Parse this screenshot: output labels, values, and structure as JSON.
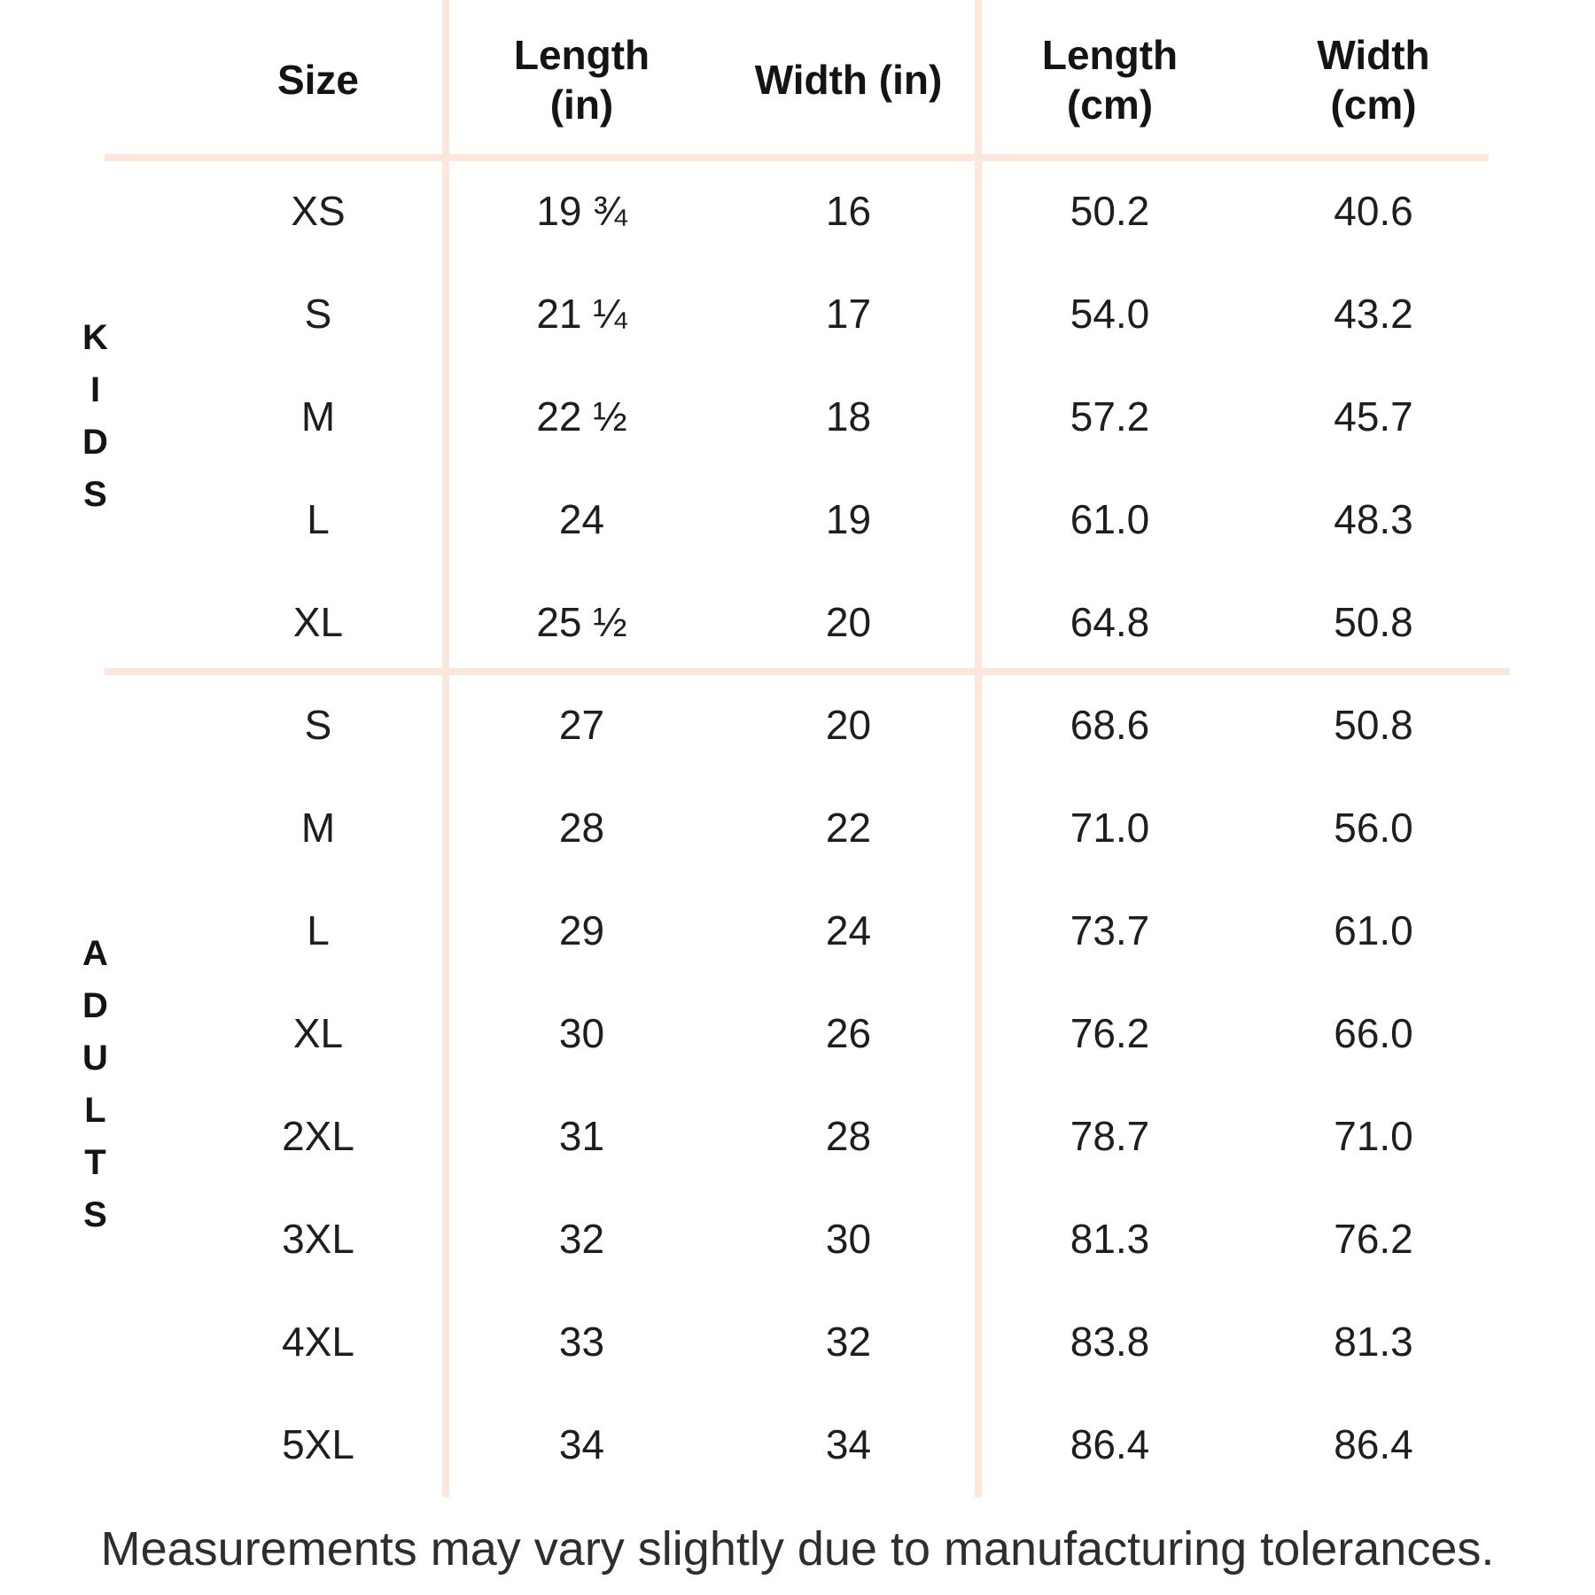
{
  "colors": {
    "background": "#ffffff",
    "divider_line": "#fbe7dc",
    "text": "#1e1e1e",
    "footer_text": "#2e2e2e"
  },
  "header_lines": [
    [
      "Size"
    ],
    [
      "Length",
      "(in)"
    ],
    [
      "Width (in)"
    ],
    [
      "Length",
      "(cm)"
    ],
    [
      "Width",
      "(cm)"
    ]
  ],
  "chart_data": {
    "type": "table",
    "columns": [
      "Size",
      "Length (in)",
      "Width (in)",
      "Length (cm)",
      "Width (cm)"
    ],
    "sections": [
      {
        "group": "KIDS",
        "letters": [
          "K",
          "I",
          "D",
          "S"
        ],
        "rows": [
          [
            "XS",
            "19 ¾",
            "16",
            "50.2",
            "40.6"
          ],
          [
            "S",
            "21 ¼",
            "17",
            "54.0",
            "43.2"
          ],
          [
            "M",
            "22 ½",
            "18",
            "57.2",
            "45.7"
          ],
          [
            "L",
            "24",
            "19",
            "61.0",
            "48.3"
          ],
          [
            "XL",
            "25 ½",
            "20",
            "64.8",
            "50.8"
          ]
        ]
      },
      {
        "group": "ADULTS",
        "letters": [
          "A",
          "D",
          "U",
          "L",
          "T",
          "S"
        ],
        "rows": [
          [
            "S",
            "27",
            "20",
            "68.6",
            "50.8"
          ],
          [
            "M",
            "28",
            "22",
            "71.0",
            "56.0"
          ],
          [
            "L",
            "29",
            "24",
            "73.7",
            "61.0"
          ],
          [
            "XL",
            "30",
            "26",
            "76.2",
            "66.0"
          ],
          [
            "2XL",
            "31",
            "28",
            "78.7",
            "71.0"
          ],
          [
            "3XL",
            "32",
            "30",
            "81.3",
            "76.2"
          ],
          [
            "4XL",
            "33",
            "32",
            "83.8",
            "81.3"
          ],
          [
            "5XL",
            "34",
            "34",
            "86.4",
            "86.4"
          ]
        ]
      }
    ]
  },
  "footer": {
    "note": "Measurements may vary slightly due to manufacturing tolerances."
  }
}
